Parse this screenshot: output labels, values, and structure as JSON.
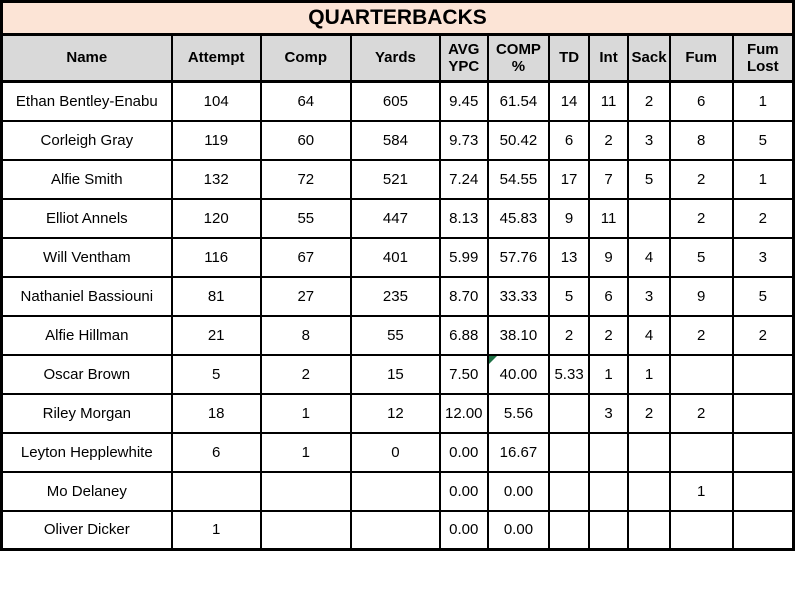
{
  "title": "QUARTERBACKS",
  "colors": {
    "title_bg": "#FCE4D6",
    "header_bg": "#D9D9D9",
    "grid_border": "#000000",
    "error_indicator": "#1E7145"
  },
  "table": {
    "columns": [
      "Name",
      "Attempt",
      "Comp",
      "Yards",
      "AVG YPC",
      "COMP %",
      "TD",
      "Int",
      "Sack",
      "Fum",
      "Fum Lost"
    ],
    "rows": [
      [
        "Ethan Bentley-Enabu",
        "104",
        "64",
        "605",
        "9.45",
        "61.54",
        "14",
        "11",
        "2",
        "6",
        "1"
      ],
      [
        "Corleigh Gray",
        "119",
        "60",
        "584",
        "9.73",
        "50.42",
        "6",
        "2",
        "3",
        "8",
        "5"
      ],
      [
        "Alfie Smith",
        "132",
        "72",
        "521",
        "7.24",
        "54.55",
        "17",
        "7",
        "5",
        "2",
        "1"
      ],
      [
        "Elliot Annels",
        "120",
        "55",
        "447",
        "8.13",
        "45.83",
        "9",
        "11",
        "",
        "2",
        "2"
      ],
      [
        "Will Ventham",
        "116",
        "67",
        "401",
        "5.99",
        "57.76",
        "13",
        "9",
        "4",
        "5",
        "3"
      ],
      [
        "Nathaniel Bassiouni",
        "81",
        "27",
        "235",
        "8.70",
        "33.33",
        "5",
        "6",
        "3",
        "9",
        "5"
      ],
      [
        "Alfie Hillman",
        "21",
        "8",
        "55",
        "6.88",
        "38.10",
        "2",
        "2",
        "4",
        "2",
        "2"
      ],
      [
        "Oscar Brown",
        "5",
        "2",
        "15",
        "7.50",
        "40.00",
        "5.33",
        "1",
        "1",
        "",
        ""
      ],
      [
        "Riley Morgan",
        "18",
        "1",
        "12",
        "12.00",
        "5.56",
        "",
        "3",
        "2",
        "2",
        ""
      ],
      [
        "Leyton Hepplewhite",
        "6",
        "1",
        "0",
        "0.00",
        "16.67",
        "",
        "",
        "",
        "",
        ""
      ],
      [
        "Mo Delaney",
        "",
        "",
        "",
        "0.00",
        "0.00",
        "",
        "",
        "",
        "1",
        ""
      ],
      [
        "Oliver Dicker",
        "1",
        "",
        "",
        "0.00",
        "0.00",
        "",
        "",
        "",
        "",
        ""
      ]
    ],
    "error_indicator_cell": {
      "row": 7,
      "col": 5
    }
  }
}
